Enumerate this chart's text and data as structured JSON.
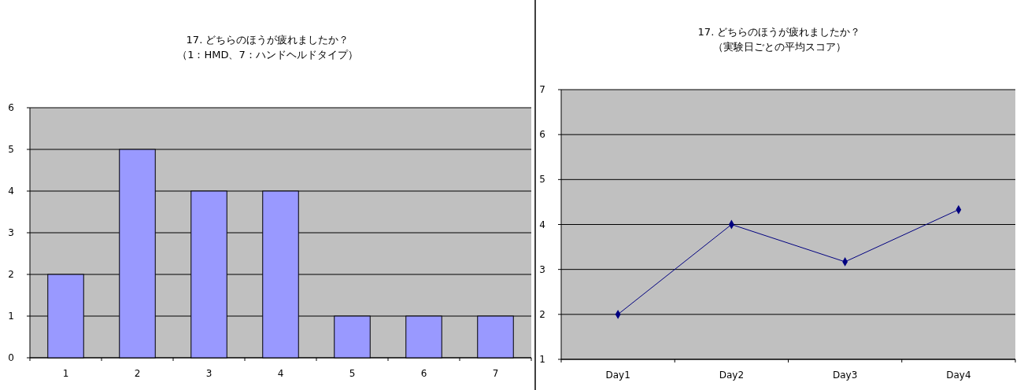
{
  "chart_data": [
    {
      "type": "bar",
      "title": "17. どちらのほうが疲れましたか？",
      "subtitle": "（1：HMD、7：ハンドヘルドタイプ）",
      "categories": [
        "1",
        "2",
        "3",
        "4",
        "5",
        "6",
        "7"
      ],
      "values": [
        2,
        5,
        4,
        4,
        1,
        1,
        1
      ],
      "color": "#9999ff",
      "ylim": [
        0,
        6
      ],
      "yticks": [
        0,
        1,
        2,
        3,
        4,
        5,
        6
      ],
      "grid": "y"
    },
    {
      "type": "line",
      "title": "17. どちらのほうが疲れましたか？",
      "subtitle": "（実験日ごとの平均スコア）",
      "categories": [
        "Day1",
        "Day2",
        "Day3",
        "Day4"
      ],
      "values": [
        2,
        4,
        3.17,
        4.33
      ],
      "color": "#000080",
      "ylim": [
        1,
        7
      ],
      "yticks": [
        1,
        2,
        3,
        4,
        5,
        6,
        7
      ],
      "grid": "y",
      "marker": "diamond"
    }
  ]
}
